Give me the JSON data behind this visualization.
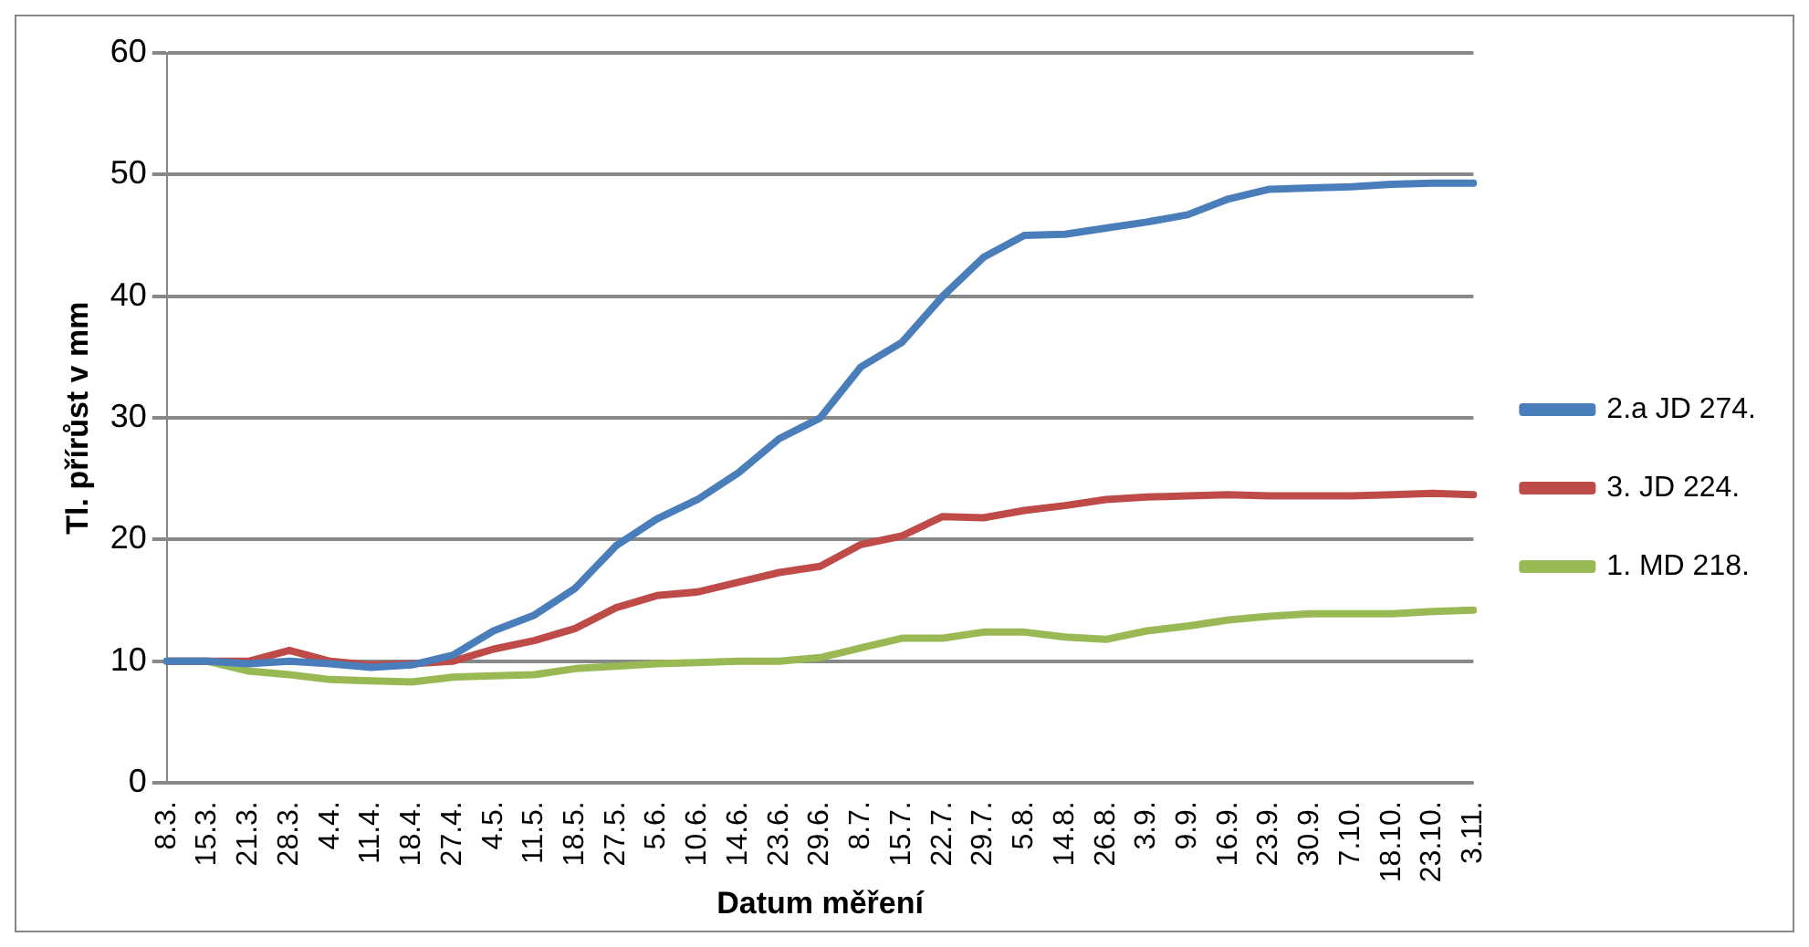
{
  "chart_data": {
    "type": "line",
    "xlabel": "Datum měření",
    "ylabel": "Tl. přírůst v mm",
    "categories": [
      "8.3.",
      "15.3.",
      "21.3.",
      "28.3.",
      "4.4.",
      "11.4.",
      "18.4.",
      "27.4.",
      "4.5.",
      "11.5.",
      "18.5.",
      "27.5.",
      "5.6.",
      "10.6.",
      "14.6.",
      "23.6.",
      "29.6.",
      "8.7.",
      "15.7.",
      "22.7.",
      "29.7.",
      "5.8.",
      "14.8.",
      "26.8.",
      "3.9.",
      "9.9.",
      "16.9.",
      "23.9.",
      "30.9.",
      "7.10.",
      "18.10.",
      "23.10.",
      "3.11."
    ],
    "series": [
      {
        "name": "2.a JD 274.",
        "color": "#4a7ebb",
        "values": [
          10,
          10,
          9.8,
          10,
          9.8,
          9.5,
          9.7,
          10.5,
          12.5,
          13.8,
          16,
          19.5,
          21.7,
          23.3,
          25.5,
          28.3,
          30,
          34.2,
          36.2,
          40,
          43.2,
          45,
          45.1,
          45.6,
          46.1,
          46.7,
          48,
          48.8,
          48.9,
          49,
          49.2,
          49.3,
          49.3
        ]
      },
      {
        "name": "3. JD 224.",
        "color": "#be4b48",
        "values": [
          10,
          10,
          10,
          10.9,
          10,
          9.7,
          9.8,
          10,
          11,
          11.7,
          12.7,
          14.4,
          15.4,
          15.7,
          16.5,
          17.3,
          17.8,
          19.6,
          20.3,
          21.9,
          21.8,
          22.4,
          22.8,
          23.3,
          23.5,
          23.6,
          23.7,
          23.6,
          23.6,
          23.6,
          23.7,
          23.8,
          23.7
        ]
      },
      {
        "name": "1. MD 218.",
        "color": "#98b954",
        "values": [
          10,
          10,
          9.2,
          8.9,
          8.5,
          8.4,
          8.3,
          8.7,
          8.8,
          8.9,
          9.4,
          9.6,
          9.8,
          9.9,
          10,
          10,
          10.3,
          11.1,
          11.9,
          11.9,
          12.4,
          12.4,
          12,
          11.8,
          12.5,
          12.9,
          13.4,
          13.7,
          13.9,
          13.9,
          13.9,
          14.1,
          14.2
        ]
      }
    ],
    "ylim": [
      0,
      60
    ],
    "yticks": [
      0,
      10,
      20,
      30,
      40,
      50,
      60
    ],
    "grid": "y",
    "legend": "right",
    "marker": "none",
    "line_style": "solid"
  }
}
